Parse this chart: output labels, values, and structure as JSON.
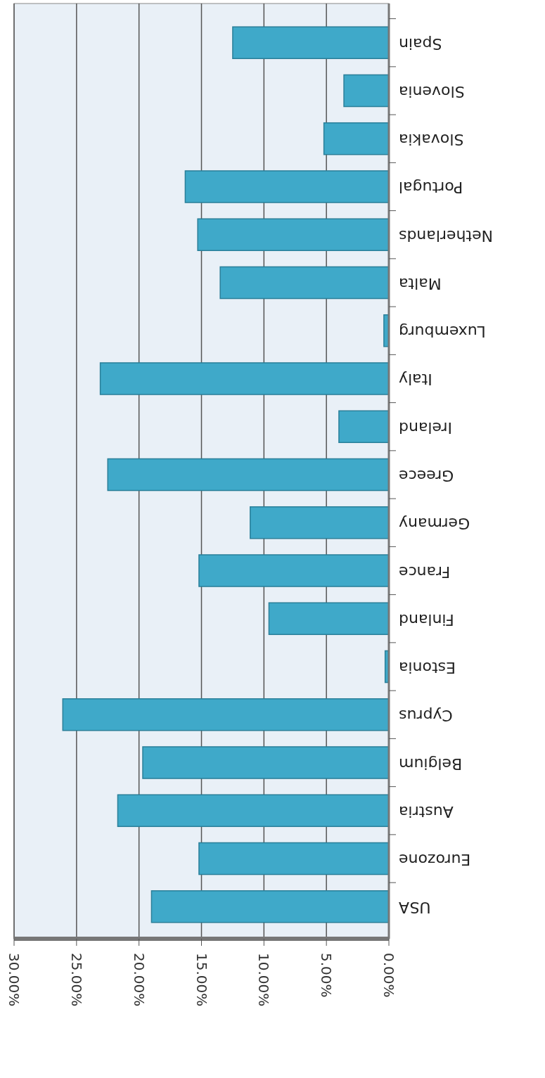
{
  "chart_data": {
    "type": "bar",
    "orientation": "horizontal",
    "categories": [
      "Spain",
      "Slovenia",
      "Slovakia",
      "Portugal",
      "Netherlands",
      "Malta",
      "Luxemburg",
      "Italy",
      "Ireland",
      "Greece",
      "Germany",
      "France",
      "Finland",
      "Estonia",
      "Cyprus",
      "Belgium",
      "Austria",
      "Eurozone",
      "USA"
    ],
    "values": [
      12.5,
      3.6,
      5.2,
      16.3,
      15.3,
      13.5,
      0.4,
      23.1,
      4.0,
      22.5,
      11.1,
      15.2,
      9.6,
      0.3,
      26.1,
      19.7,
      21.7,
      15.2,
      19.0
    ],
    "color": "#3fa9c9",
    "xlim": [
      30,
      0
    ],
    "xticks": [
      {
        "value": 30,
        "label": "30.00%"
      },
      {
        "value": 25,
        "label": "25.00%"
      },
      {
        "value": 20,
        "label": "20.00%"
      },
      {
        "value": 15,
        "label": "15.00%"
      },
      {
        "value": 10,
        "label": "10.00%"
      },
      {
        "value": 5,
        "label": "5.00%"
      },
      {
        "value": 0,
        "label": "0.00%"
      }
    ],
    "grid": true
  }
}
